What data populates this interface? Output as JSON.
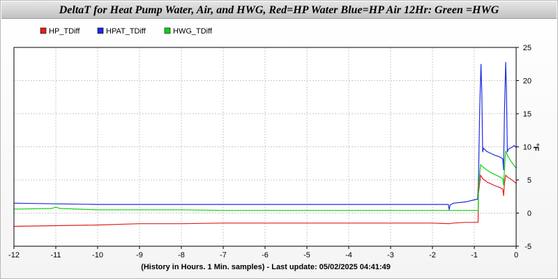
{
  "chart_data": {
    "type": "line",
    "title": "DeltaT for Heat Pump Water, Air, and HWG, Red=HP Water Blue=HP Air 12Hr: Green =HWG",
    "xlabel": "(History in Hours. 1 Min. samples) - Last update: 05/02/2025 04:41:49",
    "ylabel": "°F",
    "xlim": [
      -12,
      0
    ],
    "ylim": [
      -5,
      25
    ],
    "x_ticks": [
      "-12",
      "-11",
      "-10",
      "-9",
      "-8",
      "-7",
      "-6",
      "-5",
      "-4",
      "-3",
      "-2",
      "-1",
      "0"
    ],
    "y_ticks": [
      "25",
      "20",
      "15",
      "10",
      "5",
      "0",
      "-5"
    ],
    "grid": true,
    "legend_position": "top-left",
    "series": [
      {
        "name": "HP_TDiff",
        "color": "#e02020",
        "points": [
          [
            -12,
            -2.0
          ],
          [
            -11,
            -1.9
          ],
          [
            -10,
            -1.8
          ],
          [
            -9,
            -1.6
          ],
          [
            -8,
            -1.6
          ],
          [
            -7,
            -1.5
          ],
          [
            -6,
            -1.5
          ],
          [
            -5,
            -1.5
          ],
          [
            -4,
            -1.5
          ],
          [
            -3,
            -1.5
          ],
          [
            -2,
            -1.5
          ],
          [
            -1.6,
            -1.6
          ],
          [
            -1.5,
            -1.5
          ],
          [
            -1.2,
            -1.4
          ],
          [
            -0.92,
            -1.4
          ],
          [
            -0.91,
            -1.4
          ],
          [
            -0.9,
            3.0
          ],
          [
            -0.85,
            5.7
          ],
          [
            -0.8,
            5.2
          ],
          [
            -0.7,
            4.7
          ],
          [
            -0.6,
            4.4
          ],
          [
            -0.5,
            4.1
          ],
          [
            -0.4,
            3.9
          ],
          [
            -0.32,
            3.6
          ],
          [
            -0.3,
            2.6
          ],
          [
            -0.28,
            4.5
          ],
          [
            -0.25,
            5.7
          ],
          [
            -0.2,
            5.4
          ],
          [
            -0.1,
            5.0
          ],
          [
            0,
            4.5
          ]
        ]
      },
      {
        "name": "HPAT_TDiff",
        "color": "#1a2ce0",
        "points": [
          [
            -12,
            1.5
          ],
          [
            -11,
            1.4
          ],
          [
            -10,
            1.3
          ],
          [
            -9,
            1.3
          ],
          [
            -8,
            1.3
          ],
          [
            -7,
            1.3
          ],
          [
            -6,
            1.3
          ],
          [
            -5,
            1.3
          ],
          [
            -4,
            1.3
          ],
          [
            -3,
            1.3
          ],
          [
            -2,
            1.3
          ],
          [
            -1.62,
            1.3
          ],
          [
            -1.6,
            0.5
          ],
          [
            -1.58,
            1.2
          ],
          [
            -1.5,
            1.5
          ],
          [
            -1.2,
            1.7
          ],
          [
            -1.0,
            2.0
          ],
          [
            -0.92,
            2.1
          ],
          [
            -0.9,
            5.0
          ],
          [
            -0.87,
            16.0
          ],
          [
            -0.84,
            22.5
          ],
          [
            -0.82,
            18.0
          ],
          [
            -0.8,
            9.2
          ],
          [
            -0.78,
            9.8
          ],
          [
            -0.7,
            9.3
          ],
          [
            -0.6,
            9.0
          ],
          [
            -0.5,
            8.7
          ],
          [
            -0.4,
            8.5
          ],
          [
            -0.32,
            8.2
          ],
          [
            -0.3,
            6.5
          ],
          [
            -0.28,
            15.0
          ],
          [
            -0.25,
            22.8
          ],
          [
            -0.23,
            18.0
          ],
          [
            -0.21,
            9.2
          ],
          [
            -0.19,
            9.6
          ],
          [
            -0.15,
            9.8
          ],
          [
            -0.1,
            9.9
          ],
          [
            -0.05,
            10.2
          ],
          [
            0,
            9.9
          ]
        ]
      },
      {
        "name": "HWG_TDiff",
        "color": "#10d010",
        "points": [
          [
            -12,
            0.6
          ],
          [
            -11.1,
            0.7
          ],
          [
            -11,
            0.9
          ],
          [
            -10.9,
            0.7
          ],
          [
            -10,
            0.5
          ],
          [
            -9,
            0.5
          ],
          [
            -8,
            0.5
          ],
          [
            -7,
            0.4
          ],
          [
            -6,
            0.4
          ],
          [
            -5,
            0.4
          ],
          [
            -4,
            0.4
          ],
          [
            -3,
            0.4
          ],
          [
            -2,
            0.4
          ],
          [
            -1.6,
            0.4
          ],
          [
            -1.2,
            0.4
          ],
          [
            -0.92,
            0.4
          ],
          [
            -0.91,
            0.4
          ],
          [
            -0.9,
            4.0
          ],
          [
            -0.85,
            7.3
          ],
          [
            -0.8,
            7.0
          ],
          [
            -0.7,
            6.5
          ],
          [
            -0.6,
            6.1
          ],
          [
            -0.5,
            5.8
          ],
          [
            -0.4,
            5.5
          ],
          [
            -0.32,
            5.2
          ],
          [
            -0.3,
            4.2
          ],
          [
            -0.28,
            6.5
          ],
          [
            -0.25,
            9.4
          ],
          [
            -0.2,
            8.6
          ],
          [
            -0.1,
            7.6
          ],
          [
            0,
            6.8
          ]
        ]
      }
    ]
  }
}
